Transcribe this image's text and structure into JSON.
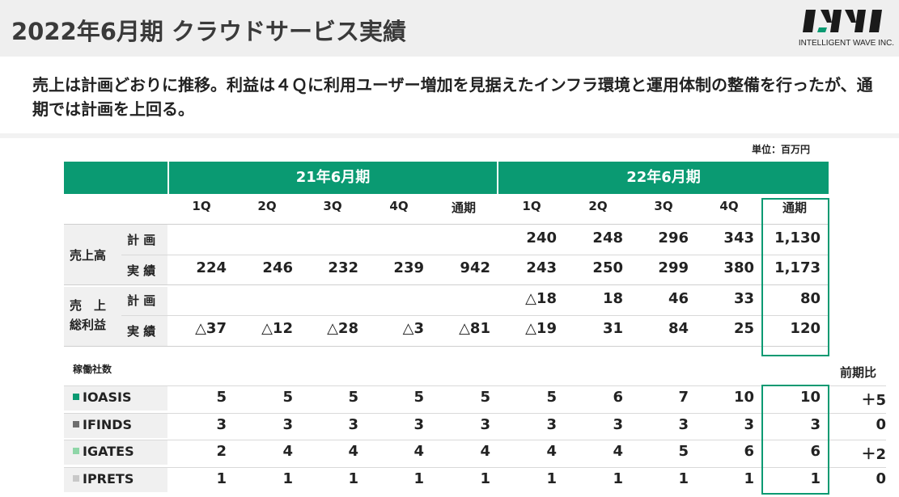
{
  "header": {
    "title": "2022年6月期 クラウドサービス実績",
    "logo_text": "INTELLIGENT WAVE INC."
  },
  "summary": "売上は計画どおりに推移。利益は４Ｑに利用ユーザー増加を見据えたインフラ環境と運用体制の整備を行ったが、通期では計画を上回る。",
  "unit": "単位：百万円",
  "periods": [
    "21年6月期",
    "22年6月期"
  ],
  "quarters": [
    "1Q",
    "2Q",
    "3Q",
    "4Q",
    "通期",
    "1Q",
    "2Q",
    "3Q",
    "4Q",
    "通期"
  ],
  "sales": {
    "label": "売上高",
    "plan_label": "計 画",
    "actual_label": "実 績",
    "plan": [
      "",
      "",
      "",
      "",
      "",
      "240",
      "248",
      "296",
      "343",
      "1,130"
    ],
    "actual": [
      "224",
      "246",
      "232",
      "239",
      "942",
      "243",
      "250",
      "299",
      "380",
      "1,173"
    ]
  },
  "gross_profit": {
    "label_line1": "売　上",
    "label_line2": "総利益",
    "plan_label": "計 画",
    "actual_label": "実 績",
    "plan": [
      "",
      "",
      "",
      "",
      "",
      "△18",
      "18",
      "46",
      "33",
      "80"
    ],
    "actual": [
      "△37",
      "△12",
      "△28",
      "△3",
      "△81",
      "△19",
      "31",
      "84",
      "25",
      "120"
    ]
  },
  "clients_section": {
    "title": "稼働社数",
    "prev_label": "前期比",
    "services": [
      {
        "name": "IOASIS",
        "color": "#0a9a72",
        "values": [
          "5",
          "5",
          "5",
          "5",
          "5",
          "5",
          "6",
          "7",
          "10",
          "10"
        ],
        "diff": "＋5"
      },
      {
        "name": "IFINDS",
        "color": "#6e6e6e",
        "values": [
          "3",
          "3",
          "3",
          "3",
          "3",
          "3",
          "3",
          "3",
          "3",
          "3"
        ],
        "diff": "0"
      },
      {
        "name": "IGATES",
        "color": "#8fd6a8",
        "values": [
          "2",
          "4",
          "4",
          "4",
          "4",
          "4",
          "4",
          "5",
          "6",
          "6"
        ],
        "diff": "＋2"
      },
      {
        "name": "IPRETS",
        "color": "#c8c8c8",
        "values": [
          "1",
          "1",
          "1",
          "1",
          "1",
          "1",
          "1",
          "1",
          "1",
          "1"
        ],
        "diff": "0"
      }
    ]
  }
}
